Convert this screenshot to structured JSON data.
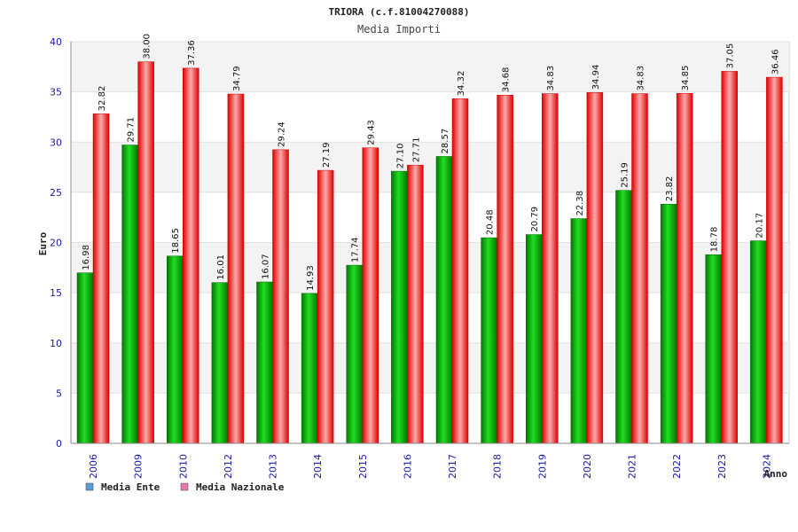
{
  "chart_data": {
    "type": "bar",
    "title": "TRIORA (c.f.81004270088)",
    "subtitle": "Media Importi",
    "ylabel": "Euro",
    "xlabel": "Anno",
    "ylim": [
      0,
      40
    ],
    "yticks": [
      "0",
      "5",
      "10",
      "15",
      "20",
      "25",
      "30",
      "35",
      "40"
    ],
    "grid": true,
    "legend_position": "bottom-left",
    "categories": [
      "2006",
      "2009",
      "2010",
      "2012",
      "2013",
      "2014",
      "2015",
      "2016",
      "2017",
      "2018",
      "2019",
      "2020",
      "2021",
      "2022",
      "2023",
      "2024"
    ],
    "series": [
      {
        "name": "Media Ente",
        "color": "#00aa00",
        "legend_color": "#5b9bd5",
        "values": [
          16.98,
          29.71,
          18.65,
          16.01,
          16.07,
          14.93,
          17.74,
          27.1,
          28.57,
          20.48,
          20.79,
          22.38,
          25.19,
          23.82,
          18.78,
          20.17
        ],
        "labels": [
          "16.98",
          "29.71",
          "18.65",
          "16.01",
          "16.07",
          "14.93",
          "17.74",
          "27.10",
          "28.57",
          "20.48",
          "20.79",
          "22.38",
          "25.19",
          "23.82",
          "18.78",
          "20.17"
        ]
      },
      {
        "name": "Media Nazionale",
        "color": "#ee1111",
        "legend_color": "#e07aa8",
        "values": [
          32.82,
          38.0,
          37.36,
          34.79,
          29.24,
          27.19,
          29.43,
          27.71,
          34.32,
          34.68,
          34.83,
          34.94,
          34.83,
          34.85,
          37.05,
          36.46
        ],
        "labels": [
          "32.82",
          "38.00",
          "37.36",
          "34.79",
          "29.24",
          "27.19",
          "29.43",
          "27.71",
          "34.32",
          "34.68",
          "34.83",
          "34.94",
          "34.83",
          "34.85",
          "37.05",
          "36.46"
        ]
      }
    ]
  }
}
